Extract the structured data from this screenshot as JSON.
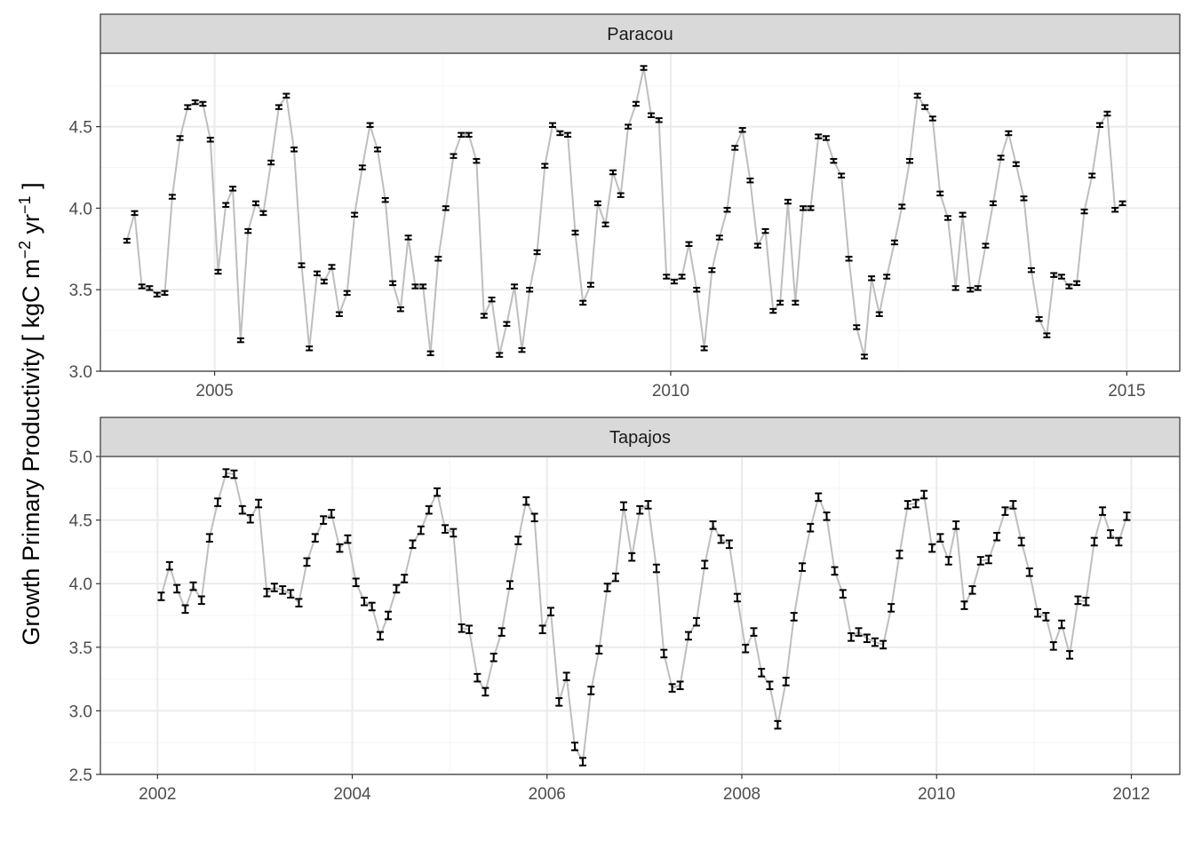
{
  "ylabel_main": "Growth Primary Productivity [ kgC m",
  "ylabel_exp1": "−2",
  "ylabel_mid": " yr",
  "ylabel_exp2": "−1",
  "ylabel_end": " ]",
  "colors": {
    "line": "#bebebe",
    "point": "#000000",
    "strip_bg": "#d9d9d9",
    "grid_major": "#ebebeb",
    "grid_minor": "#f5f5f5",
    "panel_border": "#333333",
    "text": "#4d4d4d"
  },
  "chart_data": [
    {
      "type": "line",
      "facet": "Paracou",
      "x_type": "date",
      "xlim": [
        "2003-10-01",
        "2015-08-01"
      ],
      "xticks": [
        "2005",
        "2010",
        "2015"
      ],
      "ylim": [
        3.0,
        4.95
      ],
      "yticks": [
        "3.0",
        "3.5",
        "4.0",
        "4.5"
      ],
      "grid": true,
      "error_bars": true,
      "series": [
        {
          "x": [
            "2004-01",
            "2004-02",
            "2004-03",
            "2004-04",
            "2004-05",
            "2004-06",
            "2004-07",
            "2004-08",
            "2004-09",
            "2004-10",
            "2004-11",
            "2004-12",
            "2005-01",
            "2005-02",
            "2005-03",
            "2005-04",
            "2005-05",
            "2005-06",
            "2005-07",
            "2005-08",
            "2005-09",
            "2005-10",
            "2005-11",
            "2005-12",
            "2006-01",
            "2006-02",
            "2006-03",
            "2006-04",
            "2006-05",
            "2006-06",
            "2006-07",
            "2006-08",
            "2006-09",
            "2006-10",
            "2006-11",
            "2006-12",
            "2007-01",
            "2007-02",
            "2007-03",
            "2007-04",
            "2007-05",
            "2007-06",
            "2007-07",
            "2007-08",
            "2007-09",
            "2007-10",
            "2007-11",
            "2007-12",
            "2008-01",
            "2008-02",
            "2008-03",
            "2008-04",
            "2008-05",
            "2008-06",
            "2008-07",
            "2008-08",
            "2008-09",
            "2008-10",
            "2008-11",
            "2008-12",
            "2009-01",
            "2009-02",
            "2009-03",
            "2009-04",
            "2009-05",
            "2009-06",
            "2009-07",
            "2009-08",
            "2009-09",
            "2009-10",
            "2009-11",
            "2009-12",
            "2010-01",
            "2010-02",
            "2010-03",
            "2010-04",
            "2010-05",
            "2010-06",
            "2010-07",
            "2010-08",
            "2010-09",
            "2010-10",
            "2010-11",
            "2010-12",
            "2011-01",
            "2011-02",
            "2011-03",
            "2011-04",
            "2011-05",
            "2011-06",
            "2011-07",
            "2011-08",
            "2011-09",
            "2011-10",
            "2011-11",
            "2011-12",
            "2012-01",
            "2012-02",
            "2012-03",
            "2012-04",
            "2012-05",
            "2012-06",
            "2012-07",
            "2012-08",
            "2012-09",
            "2012-10",
            "2012-11",
            "2012-12",
            "2013-01",
            "2013-02",
            "2013-03",
            "2013-04",
            "2013-05",
            "2013-06",
            "2013-07",
            "2013-08",
            "2013-09",
            "2013-10",
            "2013-11",
            "2013-12",
            "2014-01",
            "2014-02",
            "2014-03",
            "2014-04",
            "2014-05",
            "2014-06",
            "2014-07",
            "2014-08",
            "2014-09",
            "2014-10",
            "2014-11",
            "2014-12"
          ],
          "y": [
            3.8,
            3.97,
            3.52,
            3.51,
            3.47,
            3.48,
            4.07,
            4.43,
            4.62,
            4.65,
            4.64,
            4.42,
            3.61,
            4.02,
            4.12,
            3.19,
            3.86,
            4.03,
            3.97,
            4.28,
            4.62,
            4.69,
            4.36,
            3.65,
            3.14,
            3.6,
            3.55,
            3.64,
            3.35,
            3.48,
            3.96,
            4.25,
            4.51,
            4.36,
            4.05,
            3.54,
            3.38,
            3.82,
            3.52,
            3.52,
            3.11,
            3.69,
            4.0,
            4.32,
            4.45,
            4.45,
            4.29,
            3.34,
            3.44,
            3.1,
            3.29,
            3.52,
            3.13,
            3.5,
            3.73,
            4.26,
            4.51,
            4.46,
            4.45,
            3.85,
            3.42,
            3.53,
            4.03,
            3.9,
            4.22,
            4.08,
            4.5,
            4.64,
            4.86,
            4.57,
            4.54,
            3.58,
            3.55,
            3.58,
            3.78,
            3.5,
            3.14,
            3.62,
            3.82,
            3.99,
            4.37,
            4.48,
            4.17,
            3.77,
            3.86,
            3.37,
            3.42,
            4.04,
            3.42,
            4.0,
            4.0,
            4.44,
            4.43,
            4.29,
            4.2,
            3.69,
            3.27,
            3.09,
            3.57,
            3.35,
            3.58,
            3.79,
            4.01,
            4.29,
            4.69,
            4.62,
            4.55,
            4.09,
            3.94,
            3.51,
            3.96,
            3.5,
            3.51,
            3.77,
            4.03,
            4.31,
            4.46,
            4.27,
            4.06,
            3.62,
            3.32,
            3.22,
            3.59,
            3.58,
            3.52,
            3.54,
            3.98,
            4.2,
            4.51,
            4.58,
            3.99,
            4.03
          ],
          "err": 0.012
        }
      ]
    },
    {
      "type": "line",
      "facet": "Tapajos",
      "x_type": "date",
      "xlim": [
        "2001-06-01",
        "2012-07-01"
      ],
      "xticks": [
        "2002",
        "2004",
        "2006",
        "2008",
        "2010",
        "2012"
      ],
      "ylim": [
        2.5,
        5.0
      ],
      "yticks": [
        "2.5",
        "3.0",
        "3.5",
        "4.0",
        "4.5",
        "5.0"
      ],
      "grid": true,
      "error_bars": true,
      "series": [
        {
          "x": [
            "2002-01",
            "2002-02",
            "2002-03",
            "2002-04",
            "2002-05",
            "2002-06",
            "2002-07",
            "2002-08",
            "2002-09",
            "2002-10",
            "2002-11",
            "2002-12",
            "2003-01",
            "2003-02",
            "2003-03",
            "2003-04",
            "2003-05",
            "2003-06",
            "2003-07",
            "2003-08",
            "2003-09",
            "2003-10",
            "2003-11",
            "2003-12",
            "2004-01",
            "2004-02",
            "2004-03",
            "2004-04",
            "2004-05",
            "2004-06",
            "2004-07",
            "2004-08",
            "2004-09",
            "2004-10",
            "2004-11",
            "2004-12",
            "2005-01",
            "2005-02",
            "2005-03",
            "2005-04",
            "2005-05",
            "2005-06",
            "2005-07",
            "2005-08",
            "2005-09",
            "2005-10",
            "2005-11",
            "2005-12",
            "2006-01",
            "2006-02",
            "2006-03",
            "2006-04",
            "2006-05",
            "2006-06",
            "2006-07",
            "2006-08",
            "2006-09",
            "2006-10",
            "2006-11",
            "2006-12",
            "2007-01",
            "2007-02",
            "2007-03",
            "2007-04",
            "2007-05",
            "2007-06",
            "2007-07",
            "2007-08",
            "2007-09",
            "2007-10",
            "2007-11",
            "2007-12",
            "2008-01",
            "2008-02",
            "2008-03",
            "2008-04",
            "2008-05",
            "2008-06",
            "2008-07",
            "2008-08",
            "2008-09",
            "2008-10",
            "2008-11",
            "2008-12",
            "2009-01",
            "2009-02",
            "2009-03",
            "2009-04",
            "2009-05",
            "2009-06",
            "2009-07",
            "2009-08",
            "2009-09",
            "2009-10",
            "2009-11",
            "2009-12",
            "2010-01",
            "2010-02",
            "2010-03",
            "2010-04",
            "2010-05",
            "2010-06",
            "2010-07",
            "2010-08",
            "2010-09",
            "2010-10",
            "2010-11",
            "2010-12",
            "2011-01",
            "2011-02",
            "2011-03",
            "2011-04",
            "2011-05",
            "2011-06",
            "2011-07",
            "2011-08",
            "2011-09",
            "2011-10",
            "2011-11",
            "2011-12"
          ],
          "y": [
            3.9,
            4.14,
            3.96,
            3.8,
            3.98,
            3.87,
            4.36,
            4.64,
            4.87,
            4.86,
            4.58,
            4.51,
            4.63,
            3.93,
            3.97,
            3.95,
            3.92,
            3.85,
            4.17,
            4.36,
            4.5,
            4.55,
            4.28,
            4.35,
            4.01,
            3.86,
            3.82,
            3.59,
            3.75,
            3.96,
            4.04,
            4.31,
            4.42,
            4.58,
            4.72,
            4.43,
            4.4,
            3.65,
            3.64,
            3.26,
            3.15,
            3.42,
            3.62,
            3.99,
            4.34,
            4.65,
            4.52,
            3.64,
            3.78,
            3.07,
            3.27,
            2.72,
            2.6,
            3.16,
            3.48,
            3.97,
            4.05,
            4.61,
            4.21,
            4.58,
            4.62,
            4.12,
            3.45,
            3.18,
            3.2,
            3.59,
            3.7,
            4.15,
            4.46,
            4.35,
            4.31,
            3.89,
            3.49,
            3.62,
            3.3,
            3.2,
            2.89,
            3.23,
            3.74,
            4.13,
            4.44,
            4.68,
            4.53,
            4.1,
            3.92,
            3.58,
            3.62,
            3.57,
            3.54,
            3.52,
            3.81,
            4.23,
            4.62,
            4.63,
            4.7,
            4.28,
            4.36,
            4.18,
            4.46,
            3.83,
            3.95,
            4.18,
            4.19,
            4.37,
            4.57,
            4.62,
            4.33,
            4.09,
            3.77,
            3.74,
            3.51,
            3.68,
            3.44,
            3.87,
            3.86,
            4.33,
            4.57,
            4.39,
            4.33,
            4.53
          ],
          "err": 0.03
        }
      ]
    }
  ]
}
